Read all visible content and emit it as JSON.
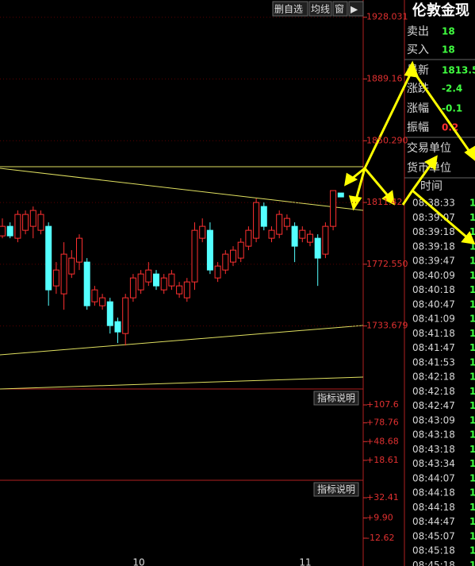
{
  "toolbar": {
    "buttons": [
      "删自选",
      "均线",
      "窗",
      "▶"
    ]
  },
  "chart_data": [
    {
      "type": "candlestick",
      "ylim": [
        1694.0,
        1938.9
      ],
      "yticks": [
        1928.031,
        1889.16,
        {
          "value": 1850.29,
          "label": "1850.290"
        },
        1811.42,
        {
          "value": 1772.55,
          "label": "1772.550"
        },
        1733.679
      ],
      "up_color": "#ff3030",
      "down_color": "#54ffff",
      "candles": [
        [
          1790.4,
          1801.4,
          1788.9,
          1796.4
        ],
        [
          1796.4,
          1798.9,
          1788.9,
          1790.4
        ],
        [
          1788.9,
          1806.4,
          1786.4,
          1803.9
        ],
        [
          1793.9,
          1806.4,
          1791.4,
          1803.9
        ],
        [
          1796.4,
          1808.9,
          1788.9,
          1806.4
        ],
        [
          1793.9,
          1806.4,
          1791.4,
          1803.9
        ],
        [
          1796.4,
          1798.9,
          1746.4,
          1756.4
        ],
        [
          1758.9,
          1773.9,
          1753.9,
          1768.9
        ],
        [
          1753.9,
          1786.4,
          1743.9,
          1778.9
        ],
        [
          1766.4,
          1781.4,
          1763.9,
          1776.4
        ],
        [
          1773.9,
          1791.4,
          1768.9,
          1788.9
        ],
        [
          1773.9,
          1776.4,
          1743.9,
          1746.4
        ],
        [
          1748.9,
          1758.9,
          1746.4,
          1756.4
        ],
        [
          1746.4,
          1753.9,
          1743.9,
          1751.4
        ],
        [
          1748.9,
          1751.4,
          1728.9,
          1733.9
        ],
        [
          1736.4,
          1738.9,
          1722.9,
          1729.9
        ],
        [
          1728.9,
          1753.9,
          1721.4,
          1751.4
        ],
        [
          1751.4,
          1766.4,
          1748.9,
          1763.9
        ],
        [
          1756.4,
          1768.9,
          1753.9,
          1766.4
        ],
        [
          1761.4,
          1773.9,
          1758.9,
          1768.9
        ],
        [
          1766.4,
          1768.9,
          1756.4,
          1758.9
        ],
        [
          1756.4,
          1766.4,
          1753.9,
          1763.9
        ],
        [
          1758.9,
          1768.9,
          1756.4,
          1766.4
        ],
        [
          1753.9,
          1761.4,
          1751.4,
          1758.9
        ],
        [
          1751.4,
          1763.9,
          1748.9,
          1761.4
        ],
        [
          1761.4,
          1798.9,
          1756.4,
          1793.9
        ],
        [
          1788.9,
          1801.4,
          1786.4,
          1796.4
        ],
        [
          1793.9,
          1798.9,
          1766.4,
          1768.9
        ],
        [
          1763.9,
          1773.9,
          1761.4,
          1771.4
        ],
        [
          1768.9,
          1781.4,
          1766.4,
          1778.9
        ],
        [
          1773.9,
          1783.9,
          1771.4,
          1781.4
        ],
        [
          1776.4,
          1788.9,
          1773.9,
          1786.4
        ],
        [
          1783.9,
          1796.4,
          1781.4,
          1793.9
        ],
        [
          1788.9,
          1813.9,
          1786.4,
          1811.4
        ],
        [
          1808.9,
          1811.4,
          1793.9,
          1796.4
        ],
        [
          1788.9,
          1796.4,
          1786.4,
          1793.9
        ],
        [
          1791.4,
          1806.4,
          1788.9,
          1803.9
        ],
        [
          1796.4,
          1803.9,
          1793.9,
          1801.4
        ],
        [
          1796.4,
          1798.9,
          1773.9,
          1783.9
        ],
        [
          1788.9,
          1796.4,
          1786.4,
          1793.9
        ],
        [
          1786.4,
          1793.9,
          1783.9,
          1791.4
        ],
        [
          1788.9,
          1791.4,
          1758.9,
          1776.4
        ],
        [
          1778.9,
          1798.9,
          1776.4,
          1796.4
        ],
        [
          1796.4,
          1818.9,
          1793.9,
          1818.9
        ],
        [
          1817.4,
          1817.4,
          1814.9,
          1814.9
        ]
      ],
      "x_labels": [
        "10",
        "11"
      ]
    },
    {
      "type": "indicator",
      "button": "指标说明",
      "ylim": [
        -13.4,
        130.6
      ],
      "yticks": [
        {
          "value": 107.6,
          "label": "+107.6"
        },
        {
          "value": 78.76,
          "label": "+78.76"
        },
        {
          "value": 48.68,
          "label": "+48.68"
        },
        {
          "value": 18.61,
          "label": "+18.61"
        }
      ]
    },
    {
      "type": "indicator",
      "button": "指标说明",
      "ylim": [
        -36.5,
        50.1
      ],
      "yticks": [
        {
          "value": 32.41,
          "label": "+32.41"
        },
        {
          "value": 9.9,
          "label": "+9.90"
        },
        -12.62
      ]
    }
  ],
  "quote_panel": {
    "title": "伦敦金现",
    "rows": [
      {
        "label": "卖出",
        "value": "18"
      },
      {
        "label": "买入",
        "value": "18"
      },
      {
        "label": "最新",
        "value": "1813.5"
      },
      {
        "label": "涨跌",
        "value": "-2.4"
      },
      {
        "label": "涨幅",
        "value": "-0.1"
      },
      {
        "label": "振幅",
        "value": "0.2"
      },
      {
        "label": "交易单位",
        "value": ""
      },
      {
        "label": "货币单位",
        "value": ""
      }
    ],
    "time_header": "时间",
    "ticks": [
      {
        "time": "08:38:33",
        "value": "1"
      },
      {
        "time": "08:39:07",
        "value": "1"
      },
      {
        "time": "08:39:18",
        "value": "1"
      },
      {
        "time": "08:39:18",
        "value": "1"
      },
      {
        "time": "08:39:47",
        "value": "1"
      },
      {
        "time": "08:40:09",
        "value": "1"
      },
      {
        "time": "08:40:18",
        "value": "1"
      },
      {
        "time": "08:40:47",
        "value": "1"
      },
      {
        "time": "08:41:09",
        "value": "1"
      },
      {
        "time": "08:41:18",
        "value": "1"
      },
      {
        "time": "08:41:47",
        "value": "1"
      },
      {
        "time": "08:41:53",
        "value": "1"
      },
      {
        "time": "08:42:18",
        "value": "1"
      },
      {
        "time": "08:42:18",
        "value": "1"
      },
      {
        "time": "08:42:47",
        "value": "1"
      },
      {
        "time": "08:43:09",
        "value": "1"
      },
      {
        "time": "08:43:18",
        "value": "1"
      },
      {
        "time": "08:43:18",
        "value": "1"
      },
      {
        "time": "08:43:34",
        "value": "1"
      },
      {
        "time": "08:44:07",
        "value": "1"
      },
      {
        "time": "08:44:18",
        "value": "1"
      },
      {
        "time": "08:44:18",
        "value": "1"
      },
      {
        "time": "08:44:47",
        "value": "1"
      },
      {
        "time": "08:45:07",
        "value": "1"
      },
      {
        "time": "08:45:18",
        "value": "1"
      },
      {
        "time": "08:45:18",
        "value": "1"
      }
    ]
  }
}
